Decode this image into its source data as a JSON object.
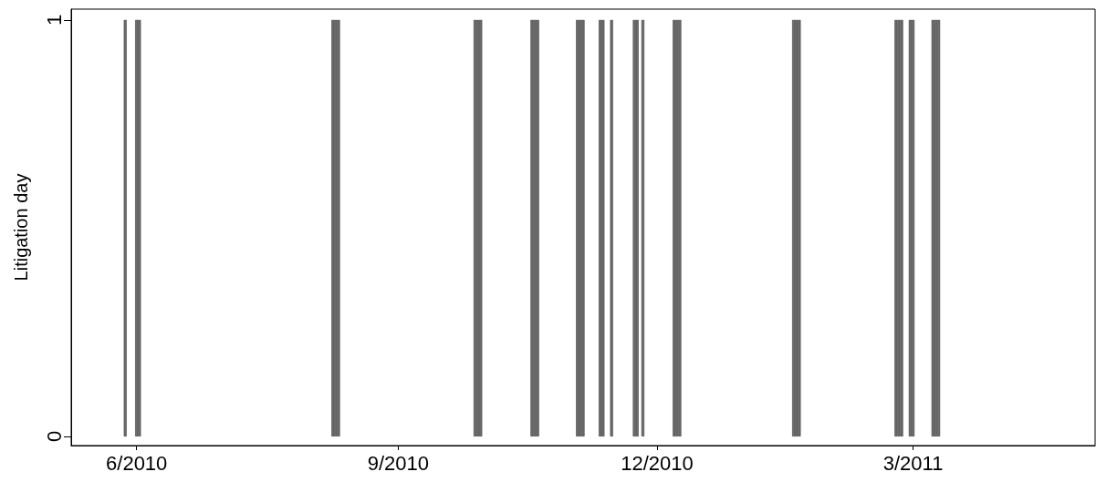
{
  "chart_data": {
    "type": "bar",
    "ylabel": "Litigation day",
    "x": [
      "2010-05-28",
      "2010-06-01",
      "2010-06-02",
      "2010-08-09",
      "2010-08-10",
      "2010-08-11",
      "2010-09-28",
      "2010-09-29",
      "2010-09-30",
      "2010-10-18",
      "2010-10-19",
      "2010-10-20",
      "2010-11-03",
      "2010-11-04",
      "2010-11-05",
      "2010-11-11",
      "2010-11-12",
      "2010-11-15",
      "2010-11-23",
      "2010-11-24",
      "2010-11-26",
      "2010-12-07",
      "2010-12-08",
      "2010-12-09",
      "2011-01-18",
      "2011-01-19",
      "2011-01-20",
      "2011-02-23",
      "2011-02-24",
      "2011-02-25",
      "2011-02-28",
      "2011-03-01",
      "2011-03-08",
      "2011-03-09",
      "2011-03-10"
    ],
    "values": [
      1,
      1,
      1,
      1,
      1,
      1,
      1,
      1,
      1,
      1,
      1,
      1,
      1,
      1,
      1,
      1,
      1,
      1,
      1,
      1,
      1,
      1,
      1,
      1,
      1,
      1,
      1,
      1,
      1,
      1,
      1,
      1,
      1,
      1,
      1
    ],
    "color": "#6e6e6e",
    "xlim": [
      "2010-05-09",
      "2011-05-04"
    ],
    "xticks": [
      {
        "value": "2010-06",
        "label": "6/2010"
      },
      {
        "value": "2010-09",
        "label": "9/2010"
      },
      {
        "value": "2010-12",
        "label": "12/2010"
      },
      {
        "value": "2011-03",
        "label": "3/2011"
      }
    ],
    "ylim": [
      -0.022,
      1.026
    ],
    "yticks": [
      0,
      1
    ],
    "grid": false
  }
}
